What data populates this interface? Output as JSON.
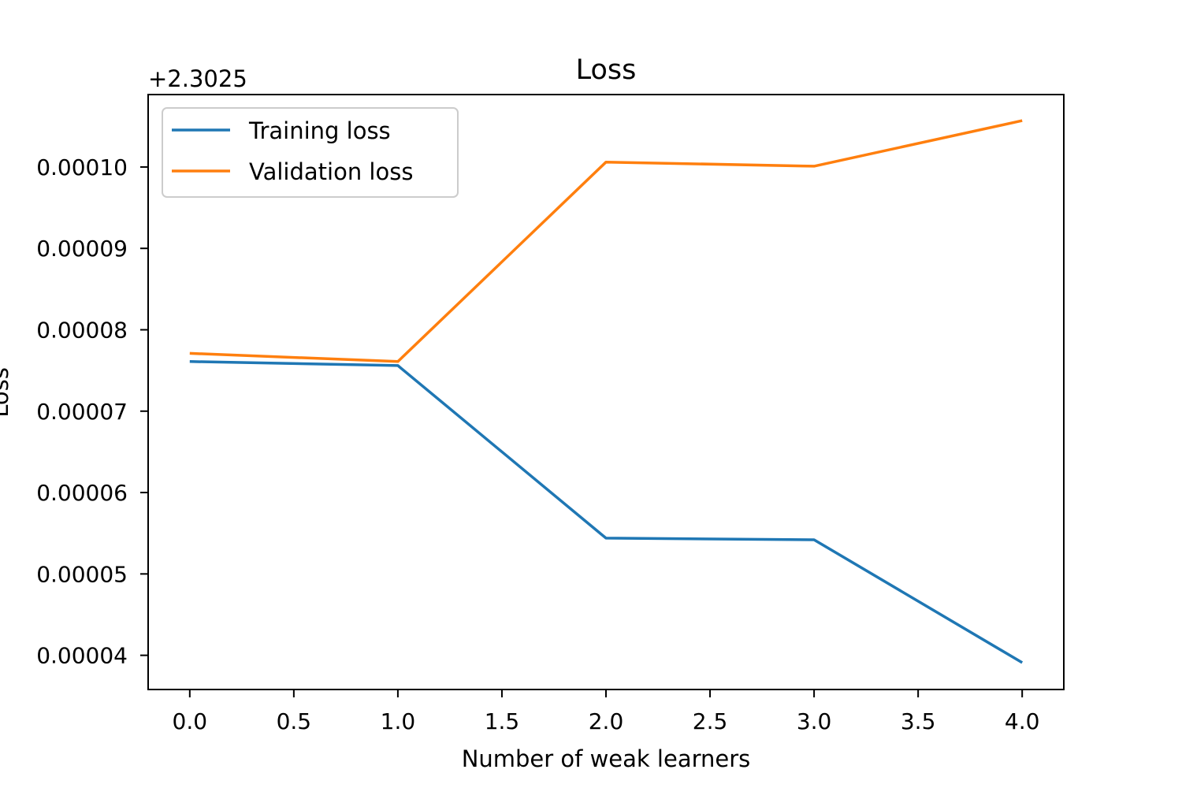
{
  "chart_data": {
    "type": "line",
    "title": "Loss",
    "xlabel": "Number of weak learners",
    "ylabel": "Loss",
    "y_offset_label": "+2.3025",
    "x": [
      0,
      1,
      2,
      3,
      4
    ],
    "xlim": [
      -0.2,
      4.2
    ],
    "ylim": [
      3.58e-05,
      0.0001089
    ],
    "x_ticks": [
      0.0,
      0.5,
      1.0,
      1.5,
      2.0,
      2.5,
      3.0,
      3.5,
      4.0
    ],
    "x_tick_labels": [
      "0.0",
      "0.5",
      "1.0",
      "1.5",
      "2.0",
      "2.5",
      "3.0",
      "3.5",
      "4.0"
    ],
    "y_ticks": [
      4e-05,
      5e-05,
      6e-05,
      7e-05,
      8e-05,
      9e-05,
      0.0001
    ],
    "y_tick_labels": [
      "0.00004",
      "0.00005",
      "0.00006",
      "0.00007",
      "0.00008",
      "0.00009",
      "0.00010"
    ],
    "grid": false,
    "legend_position": "top-left",
    "series": [
      {
        "name": "Training loss",
        "color": "#1f77b4",
        "values": [
          7.61e-05,
          7.56e-05,
          5.44e-05,
          5.42e-05,
          3.91e-05
        ]
      },
      {
        "name": "Validation loss",
        "color": "#ff7f0e",
        "values": [
          7.71e-05,
          7.61e-05,
          0.0001006,
          0.0001001,
          0.0001057
        ]
      }
    ]
  }
}
